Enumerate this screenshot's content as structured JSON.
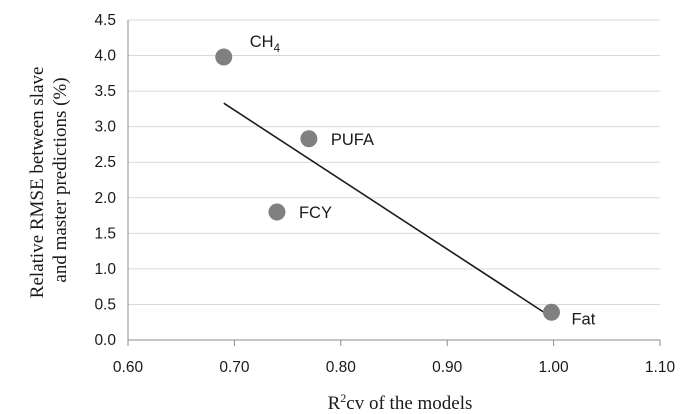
{
  "chart_data": {
    "type": "scatter",
    "title": "",
    "xlabel": {
      "base": "R",
      "sup": "2",
      "rest": "cv of the models"
    },
    "ylabel": [
      "Relative RMSE between slave",
      "and master predictions (%)"
    ],
    "xlim": [
      0.6,
      1.1
    ],
    "ylim": [
      0,
      4.5
    ],
    "x_ticks": [
      "0.60",
      "0.70",
      "0.80",
      "0.90",
      "1.00",
      "1.10"
    ],
    "y_ticks": [
      "0.0",
      "0.5",
      "1.0",
      "1.5",
      "2.0",
      "2.5",
      "3.0",
      "3.5",
      "4.0",
      "4.5"
    ],
    "grid": "horizontal",
    "points": [
      {
        "label": "CH",
        "sub": "4",
        "x": 0.69,
        "y": 3.98
      },
      {
        "label": "PUFA",
        "sub": "",
        "x": 0.77,
        "y": 2.83
      },
      {
        "label": "FCY",
        "sub": "",
        "x": 0.74,
        "y": 1.8
      },
      {
        "label": "Fat",
        "sub": "",
        "x": 0.998,
        "y": 0.39
      }
    ],
    "trendline": {
      "x": [
        0.69,
        0.998
      ],
      "y": [
        3.33,
        0.32
      ]
    },
    "marker_color": "#808080",
    "gridline_color": "#d9d9d9",
    "trendline_color": "#1a1a1a"
  }
}
